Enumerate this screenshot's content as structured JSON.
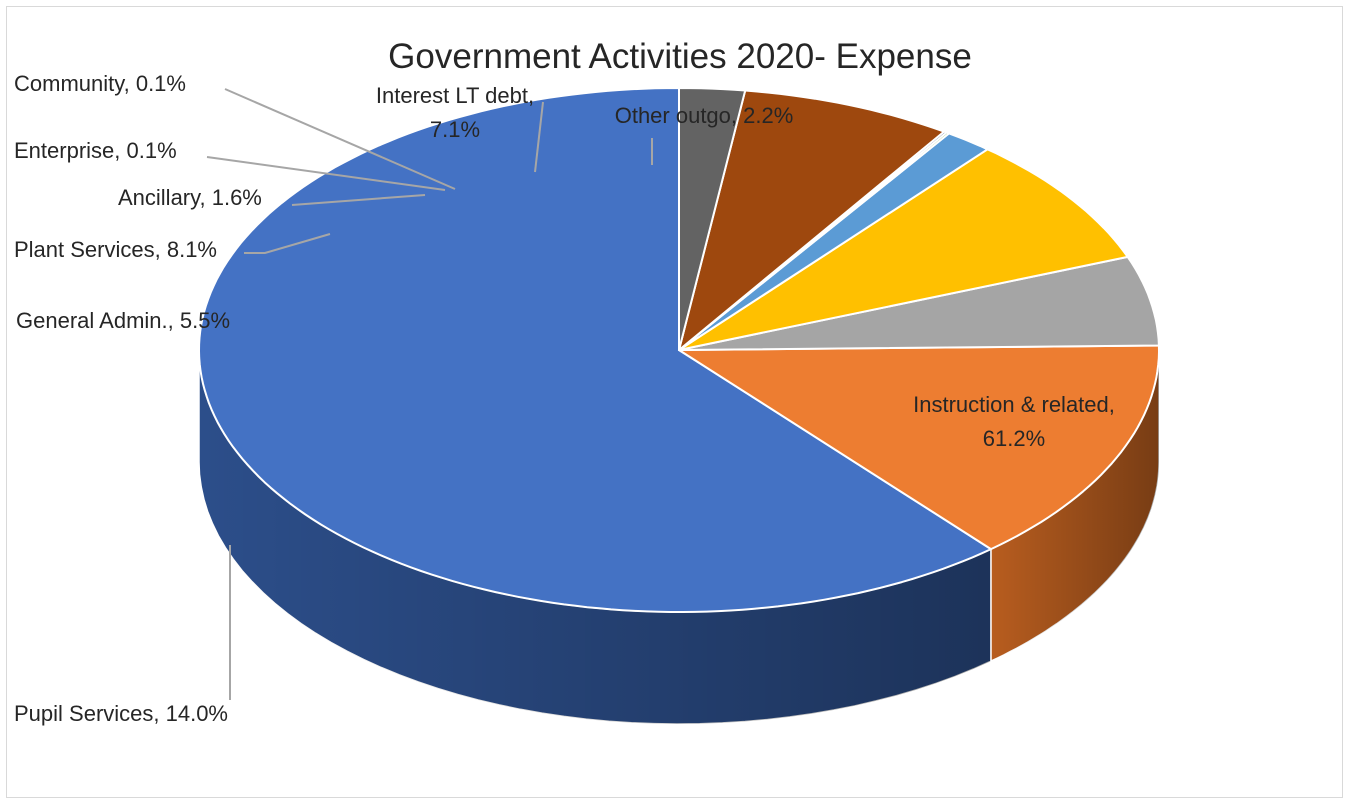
{
  "chart_data": {
    "type": "pie",
    "title": "Government Activities 2020- Expense",
    "slices": [
      {
        "name": "Instruction & related",
        "value": 61.2,
        "label": [
          "Instruction & related,",
          "61.2%"
        ],
        "color": "#4472c4",
        "side": "#2c4e8a"
      },
      {
        "name": "Pupil Services",
        "value": 14.0,
        "label": [
          "Pupil Services, 14.0%"
        ],
        "color": "#ed7d31",
        "side": "#b85d1f"
      },
      {
        "name": "General Admin.",
        "value": 5.5,
        "label": [
          "General Admin., 5.5%"
        ],
        "color": "#a5a5a5",
        "side": "#7a7a7a"
      },
      {
        "name": "Plant Services",
        "value": 8.1,
        "label": [
          "Plant Services, 8.1%"
        ],
        "color": "#ffc000",
        "side": "#c99600"
      },
      {
        "name": "Ancillary",
        "value": 1.6,
        "label": [
          "Ancillary, 1.6%"
        ],
        "color": "#5b9bd5",
        "side": "#3f74a6"
      },
      {
        "name": "Enterprise",
        "value": 0.1,
        "label": [
          "Enterprise, 0.1%"
        ],
        "color": "#70ad47",
        "side": "#4f8030"
      },
      {
        "name": "Community",
        "value": 0.1,
        "label": [
          "Community, 0.1%"
        ],
        "color": "#264478",
        "side": "#1a2f55"
      },
      {
        "name": "Interest LT debt",
        "value": 7.1,
        "label": [
          "Interest LT debt,",
          "7.1%"
        ],
        "color": "#9e480e",
        "side": "#70330a"
      },
      {
        "name": "Other outgo",
        "value": 2.2,
        "label": [
          "Other outgo, 2.2%"
        ],
        "color": "#636363",
        "side": "#444444"
      }
    ],
    "start": "12 o'clock",
    "direction": "counterclockwise",
    "style": "3d",
    "legend": "none"
  }
}
